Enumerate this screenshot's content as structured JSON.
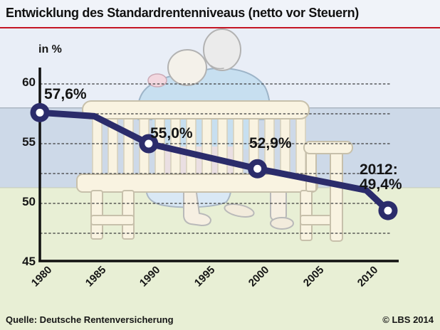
{
  "header": {
    "title": "Entwicklung des Standardrentenniveaus (netto vor Steuern)"
  },
  "axis": {
    "unit_label": "in %",
    "y_tick_labels": [
      "60",
      "55",
      "50",
      "45"
    ],
    "x_tick_labels": [
      "1980",
      "1985",
      "1990",
      "1995",
      "2000",
      "2005",
      "2010"
    ]
  },
  "annotations": {
    "p1980": "57,6%",
    "p1990": "55,0%",
    "p2000": "52,9%",
    "p2012_line1": "2012:",
    "p2012_line2": "49,4%"
  },
  "chart_data": {
    "type": "line",
    "title": "Entwicklung des Standardrentenniveaus (netto vor Steuern)",
    "ylabel": "in %",
    "x": [
      1980,
      1985,
      1990,
      2000,
      2010,
      2012
    ],
    "values": [
      57.6,
      57.3,
      55.0,
      52.9,
      51.1,
      49.4
    ],
    "marker_x": [
      1980,
      1990,
      2000,
      2012
    ],
    "labeled_points": [
      {
        "x": 1980,
        "y": 57.6,
        "label": "57,6%"
      },
      {
        "x": 1990,
        "y": 55.0,
        "label": "55,0%"
      },
      {
        "x": 2000,
        "y": 52.9,
        "label": "52,9%"
      },
      {
        "x": 2012,
        "y": 49.4,
        "label": "2012: 49,4%"
      }
    ],
    "xticks": [
      1980,
      1985,
      1990,
      1995,
      2000,
      2005,
      2010
    ],
    "yticks": [
      60,
      55,
      50,
      45
    ],
    "gridlines_y": [
      60,
      57.5,
      55,
      52.5,
      50,
      47.5
    ],
    "grid_style": "dashed-horizontal",
    "ylim": [
      45,
      61.5
    ],
    "xlim": [
      1980,
      2013
    ],
    "legend": "none"
  },
  "footer": {
    "source": "Quelle: Deutsche Rentenversicherung",
    "copyright": "© LBS 2014"
  },
  "colors": {
    "line": "#2b2c6b",
    "marker_center": "#ffffff",
    "rule_red": "#c41523",
    "title_bg": "#f0f3f9",
    "sky": "#e9eef7",
    "sea_band": "#cdd9e8",
    "grass": "#e8efd5",
    "bench": "#f9f3e1",
    "bench_outline": "#c7c0ab",
    "sweater_blue": "#c7dff0",
    "grid": "#3c3c3c",
    "axis": "#101010",
    "text": "#161616"
  }
}
